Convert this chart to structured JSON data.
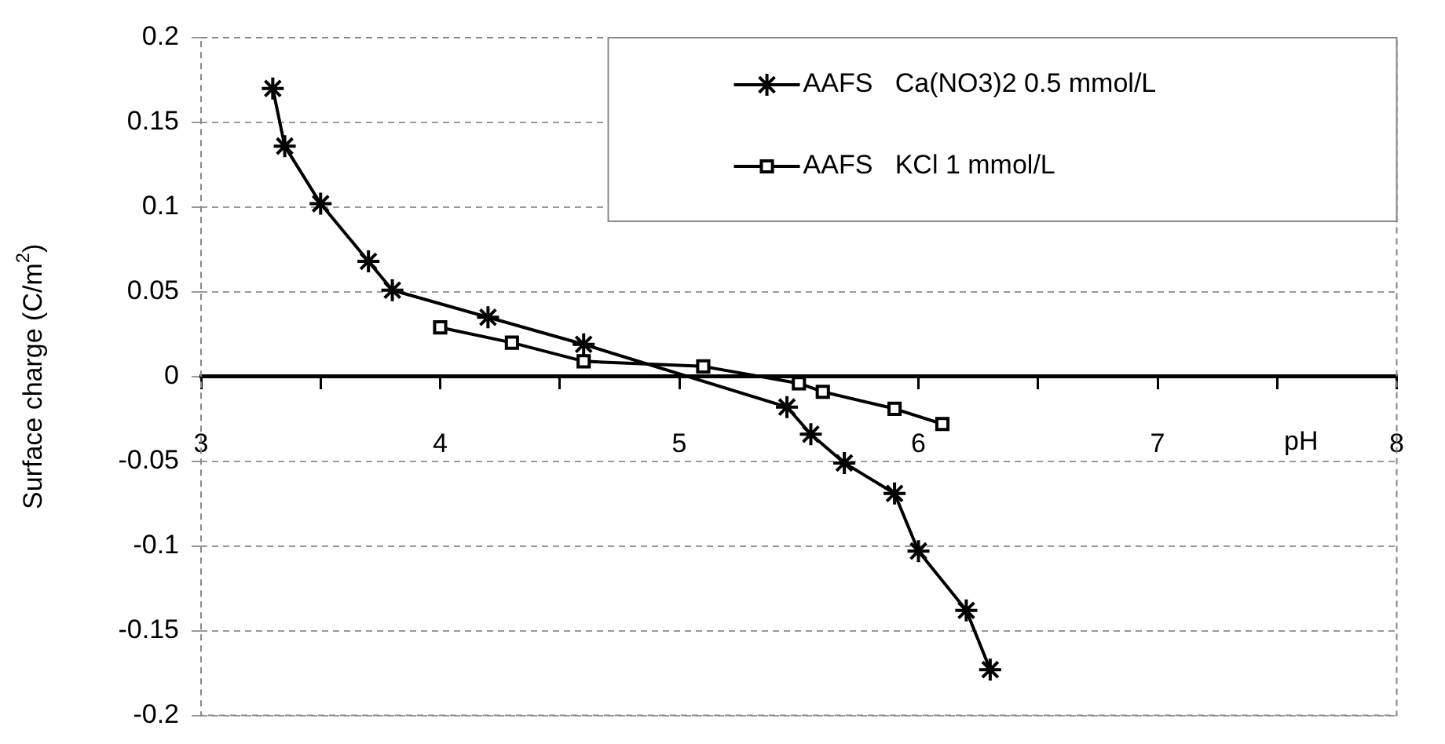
{
  "chart_data": {
    "type": "line",
    "ylabel": "Surface charge (C/m$^{2}$)",
    "xlabel": "pH",
    "xlim": [
      3,
      8
    ],
    "xticks": [
      3,
      {
        "value": 3.5,
        "label": null
      },
      4,
      {
        "value": 4.5,
        "label": null
      },
      5,
      {
        "value": 5.5,
        "label": null
      },
      6,
      {
        "value": 6.5,
        "label": null
      },
      7,
      {
        "value": 7.5,
        "label": null
      },
      8
    ],
    "ylim": [
      -0.2,
      0.2
    ],
    "yticks": [
      -0.2,
      -0.15,
      -0.1,
      -0.05,
      0,
      0.05,
      0.1,
      0.15,
      0.2
    ],
    "grid": "y",
    "legend": "top right",
    "line_style": "solid",
    "series": [
      {
        "name": "AAFS   Ca(NO3)2 0.5 mmol/L",
        "color": "#000000",
        "marker": "cross",
        "x": [
          3.3,
          3.35,
          3.5,
          3.7,
          3.8,
          4.2,
          4.6,
          5.45,
          5.55,
          5.69,
          5.9,
          6.0,
          6.2,
          6.3
        ],
        "values": [
          0.17,
          0.136,
          0.102,
          0.068,
          0.051,
          0.035,
          0.019,
          -0.018,
          -0.034,
          -0.051,
          -0.069,
          -0.103,
          -0.138,
          -0.173
        ]
      },
      {
        "name": "AAFS   KCl 1 mmol/L",
        "color": "#000000",
        "marker": "square",
        "x": [
          4.0,
          4.3,
          4.6,
          5.1,
          5.5,
          5.6,
          5.9,
          6.1
        ],
        "values": [
          0.029,
          0.02,
          0.009,
          0.006,
          -0.004,
          -0.009,
          -0.019,
          -0.028
        ]
      }
    ]
  }
}
